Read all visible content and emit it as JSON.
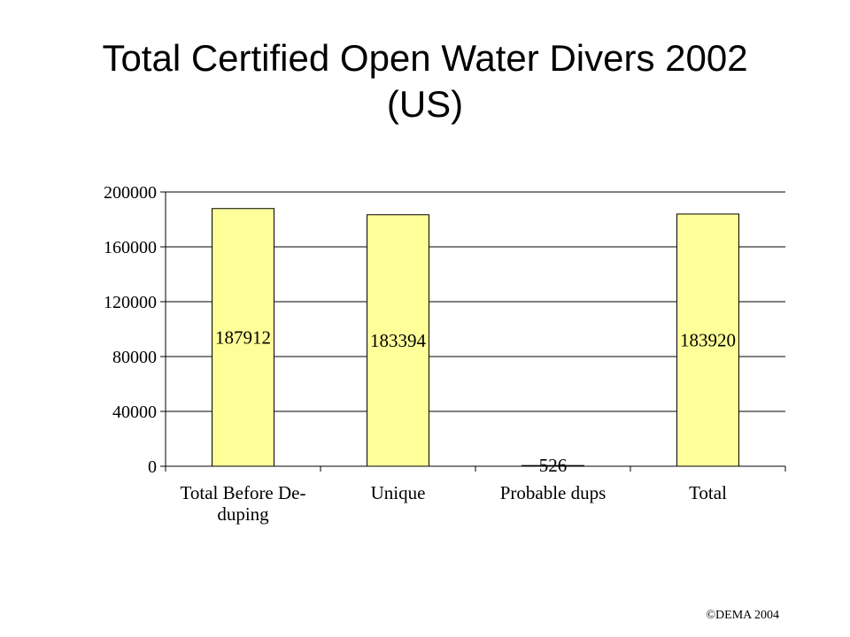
{
  "chart_data": {
    "type": "bar",
    "title": "Total Certified Open Water Divers 2002 (US)",
    "title_lines": [
      "Total Certified Open Water Divers 2002",
      "(US)"
    ],
    "categories": [
      "Total Before De-duping",
      "Unique",
      "Probable dups",
      "Total"
    ],
    "category_lines": [
      [
        "Total Before De-",
        "duping"
      ],
      [
        "Unique"
      ],
      [
        "Probable dups"
      ],
      [
        "Total"
      ]
    ],
    "values": [
      187912,
      183394,
      526,
      183920
    ],
    "data_labels": [
      "187912",
      "183394",
      "526",
      "183920"
    ],
    "ylim": [
      0,
      200000
    ],
    "yticks": [
      0,
      40000,
      80000,
      120000,
      160000,
      200000
    ],
    "ytick_labels": [
      "0",
      "40000",
      "80000",
      "120000",
      "160000",
      "200000"
    ],
    "xlabel": "",
    "ylabel": "",
    "grid": true,
    "legend": "none",
    "bar_color": "#FFFF99",
    "bar_edge_color": "#000000"
  },
  "footer": {
    "copyright": "©DEMA 2004"
  }
}
